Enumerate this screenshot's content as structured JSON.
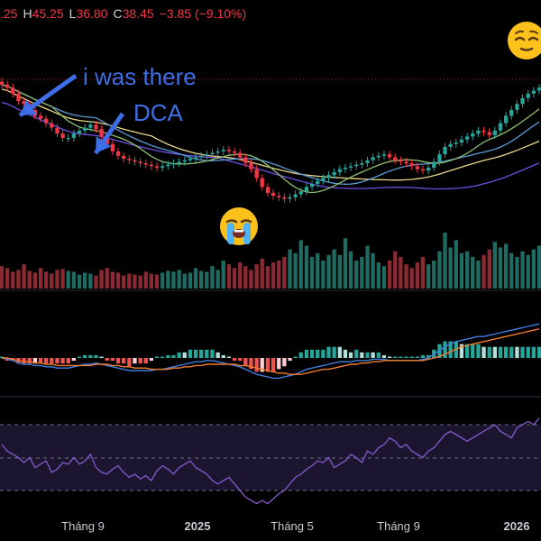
{
  "legend": {
    "open_value": ".25",
    "high_label": "H",
    "high_value": "45.25",
    "low_label": "L",
    "low_value": "36.80",
    "close_label": "C",
    "close_value": "38.45",
    "change": "−3.85 (−9.10%)"
  },
  "annotations": {
    "line1": "i was there",
    "line2": "DCA"
  },
  "emojis": [
    "relieved-face",
    "loudly-crying-face"
  ],
  "x_axis": {
    "ticks": [
      {
        "label": "Tháng 9",
        "bold": false
      },
      {
        "label": "2025",
        "bold": true
      },
      {
        "label": "Tháng 5",
        "bold": false
      },
      {
        "label": "Tháng 9",
        "bold": false
      },
      {
        "label": "2026",
        "bold": true
      }
    ]
  },
  "colors": {
    "up": "#26a69a",
    "down": "#f23645",
    "up_volume": "#1f6b62",
    "down_volume": "#8c2a33",
    "annotation_blue": "#3d6ee8",
    "ma_green": "#8dbf71",
    "ma_blue": "#5b9bd5",
    "ma_yellow": "#e8d88a",
    "ma_purple": "#6d4fe0",
    "macd_blue": "#3f7fe0",
    "signal_orange": "#f07c2f",
    "rsi_purple": "#7e57c2"
  },
  "chart_data": {
    "type": "candlestick",
    "price_series": [
      41.5,
      41.3,
      40.9,
      40.4,
      40.2,
      39.8,
      39.4,
      39.2,
      38.9,
      38.6,
      38.2,
      37.9,
      37.9,
      38.2,
      38.4,
      38.6,
      38.8,
      38.5,
      38.0,
      37.5,
      37.0,
      36.7,
      36.5,
      36.4,
      36.3,
      36.2,
      36.1,
      36.0,
      35.9,
      36.0,
      36.1,
      36.2,
      36.3,
      36.4,
      36.5,
      36.6,
      36.7,
      36.8,
      36.9,
      37.0,
      37.1,
      37.0,
      36.9,
      36.6,
      36.2,
      35.8,
      35.2,
      34.6,
      34.2,
      34.0,
      33.9,
      33.8,
      33.9,
      34.1,
      34.3,
      34.6,
      34.8,
      35.0,
      35.2,
      35.4,
      35.6,
      35.8,
      35.9,
      36.0,
      36.1,
      36.2,
      36.4,
      36.6,
      36.7,
      36.8,
      36.6,
      36.4,
      36.3,
      36.2,
      36.0,
      35.8,
      35.7,
      35.9,
      36.3,
      36.8,
      37.3,
      37.5,
      37.6,
      37.8,
      38.0,
      38.2,
      38.4,
      38.3,
      38.1,
      38.4,
      38.9,
      39.4,
      39.8,
      40.2,
      40.6,
      40.9,
      41.1,
      41.3
    ],
    "volume_series": [
      24,
      22,
      18,
      20,
      26,
      19,
      17,
      22,
      18,
      16,
      20,
      21,
      19,
      18,
      15,
      17,
      16,
      14,
      20,
      22,
      18,
      17,
      14,
      16,
      15,
      14,
      18,
      16,
      15,
      17,
      19,
      18,
      20,
      16,
      17,
      22,
      19,
      18,
      24,
      20,
      30,
      26,
      22,
      28,
      24,
      20,
      26,
      32,
      24,
      28,
      30,
      34,
      42,
      38,
      52,
      46,
      34,
      38,
      30,
      36,
      42,
      36,
      54,
      40,
      30,
      34,
      46,
      38,
      28,
      24,
      30,
      40,
      34,
      26,
      22,
      28,
      34,
      26,
      30,
      40,
      60,
      44,
      52,
      38,
      40,
      34,
      30,
      36,
      42,
      50,
      44,
      48,
      38,
      34,
      40,
      36,
      42,
      46
    ],
    "macd_series": [
      0.0,
      -0.1,
      -0.2,
      -0.4,
      -0.5,
      -0.5,
      -0.6,
      -0.6,
      -0.7,
      -0.7,
      -0.8,
      -0.8,
      -0.8,
      -0.7,
      -0.6,
      -0.5,
      -0.5,
      -0.4,
      -0.5,
      -0.6,
      -0.7,
      -0.8,
      -0.9,
      -1.0,
      -1.0,
      -1.0,
      -1.0,
      -1.0,
      -0.9,
      -0.9,
      -0.8,
      -0.7,
      -0.6,
      -0.5,
      -0.4,
      -0.3,
      -0.3,
      -0.2,
      -0.2,
      -0.3,
      -0.4,
      -0.5,
      -0.6,
      -0.7,
      -0.9,
      -1.1,
      -1.3,
      -1.4,
      -1.5,
      -1.6,
      -1.6,
      -1.5,
      -1.4,
      -1.3,
      -1.1,
      -0.9,
      -0.8,
      -0.7,
      -0.6,
      -0.5,
      -0.4,
      -0.3,
      -0.3,
      -0.3,
      -0.2,
      -0.2,
      -0.2,
      -0.1,
      -0.1,
      -0.1,
      -0.2,
      -0.2,
      -0.2,
      -0.2,
      -0.2,
      -0.2,
      -0.1,
      0.0,
      0.3,
      0.6,
      0.9,
      1.1,
      1.3,
      1.4,
      1.5,
      1.6,
      1.7,
      1.7,
      1.8,
      1.9,
      2.0,
      2.1,
      2.2,
      2.3,
      2.4,
      2.5,
      2.6,
      2.7
    ],
    "signal_series": [
      0.0,
      0.0,
      -0.1,
      -0.2,
      -0.3,
      -0.3,
      -0.4,
      -0.4,
      -0.5,
      -0.5,
      -0.6,
      -0.6,
      -0.6,
      -0.6,
      -0.6,
      -0.6,
      -0.6,
      -0.5,
      -0.5,
      -0.5,
      -0.6,
      -0.6,
      -0.7,
      -0.7,
      -0.8,
      -0.8,
      -0.8,
      -0.9,
      -0.9,
      -0.9,
      -0.9,
      -0.8,
      -0.8,
      -0.7,
      -0.7,
      -0.6,
      -0.6,
      -0.5,
      -0.5,
      -0.5,
      -0.5,
      -0.5,
      -0.5,
      -0.6,
      -0.6,
      -0.7,
      -0.8,
      -0.9,
      -1.0,
      -1.1,
      -1.2,
      -1.2,
      -1.3,
      -1.3,
      -1.3,
      -1.2,
      -1.1,
      -1.0,
      -0.9,
      -0.9,
      -0.8,
      -0.7,
      -0.6,
      -0.5,
      -0.5,
      -0.4,
      -0.4,
      -0.3,
      -0.3,
      -0.2,
      -0.2,
      -0.2,
      -0.2,
      -0.2,
      -0.2,
      -0.2,
      -0.2,
      -0.1,
      0.0,
      0.1,
      0.3,
      0.5,
      0.7,
      0.9,
      1.0,
      1.1,
      1.2,
      1.3,
      1.4,
      1.5,
      1.6,
      1.7,
      1.8,
      1.9,
      2.0,
      2.1,
      2.2,
      2.3
    ],
    "rsi_series": [
      58,
      54,
      52,
      50,
      47,
      50,
      44,
      46,
      48,
      41,
      43,
      47,
      46,
      50,
      46,
      48,
      52,
      44,
      41,
      40,
      43,
      45,
      41,
      38,
      40,
      37,
      39,
      36,
      42,
      45,
      43,
      40,
      44,
      46,
      48,
      44,
      42,
      40,
      36,
      34,
      36,
      38,
      34,
      30,
      26,
      24,
      22,
      24,
      22,
      25,
      28,
      30,
      34,
      38,
      40,
      43,
      45,
      48,
      47,
      50,
      44,
      46,
      48,
      52,
      50,
      47,
      54,
      52,
      56,
      58,
      62,
      60,
      56,
      58,
      54,
      52,
      50,
      54,
      56,
      60,
      64,
      66,
      64,
      62,
      60,
      62,
      64,
      66,
      68,
      70,
      66,
      64,
      62,
      68,
      70,
      72,
      70,
      74
    ]
  }
}
